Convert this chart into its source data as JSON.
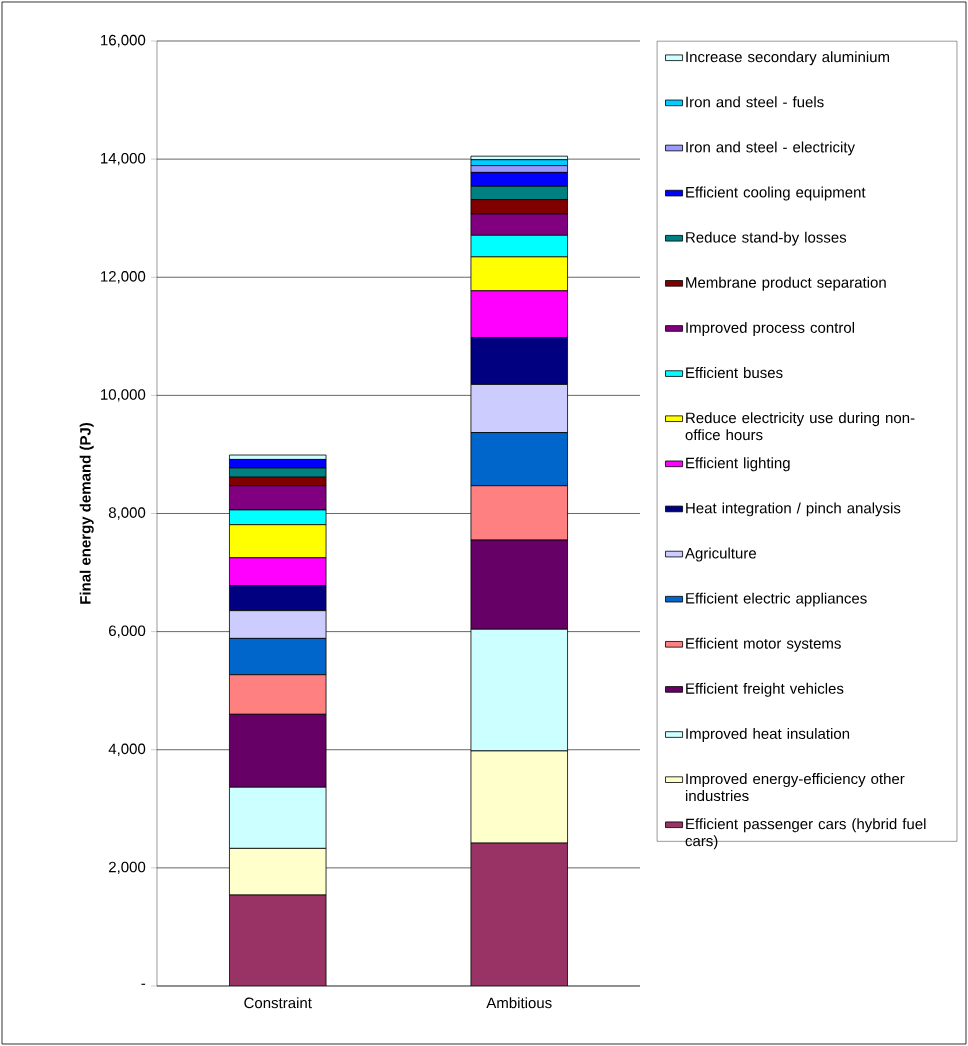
{
  "chart_data": {
    "type": "bar",
    "stacked": true,
    "ylabel": "Final energy demand (PJ)",
    "categories": [
      "Constraint",
      "Ambitious"
    ],
    "ylim": [
      0,
      16000
    ],
    "yticks": [
      {
        "value": 0,
        "label": "-"
      },
      {
        "value": 2000,
        "label": "2,000"
      },
      {
        "value": 4000,
        "label": "4,000"
      },
      {
        "value": 6000,
        "label": "6,000"
      },
      {
        "value": 8000,
        "label": "8,000"
      },
      {
        "value": 10000,
        "label": "10,000"
      },
      {
        "value": 12000,
        "label": "12,000"
      },
      {
        "value": 14000,
        "label": "14,000"
      },
      {
        "value": 16000,
        "label": "16,000"
      }
    ],
    "grid": "y",
    "legend": "right",
    "series": [
      {
        "name": "Efficient passenger cars (hybrid fuel cars)",
        "color": "#993366",
        "values": [
          1540,
          2420
        ]
      },
      {
        "name": "Improved energy-efficiency other industries",
        "color": "#ffffcc",
        "values": [
          790,
          1560
        ]
      },
      {
        "name": "Improved heat insulation",
        "color": "#ccffff",
        "values": [
          1035,
          2060
        ]
      },
      {
        "name": "Efficient freight vehicles",
        "color": "#660066",
        "values": [
          1235,
          1510
        ]
      },
      {
        "name": "Efficient motor systems",
        "color": "#ff8080",
        "values": [
          670,
          920
        ]
      },
      {
        "name": "Efficient electric appliances",
        "color": "#0066cc",
        "values": [
          615,
          900
        ]
      },
      {
        "name": "Agriculture",
        "color": "#ccccff",
        "values": [
          470,
          815
        ]
      },
      {
        "name": "Heat integration / pinch analysis",
        "color": "#000080",
        "values": [
          425,
          795
        ]
      },
      {
        "name": "Efficient lighting",
        "color": "#ff00ff",
        "values": [
          470,
          790
        ]
      },
      {
        "name": "Reduce electricity use during non-office hours",
        "color": "#ffff00",
        "values": [
          560,
          575
        ]
      },
      {
        "name": "Efficient buses",
        "color": "#00ffff",
        "values": [
          250,
          365
        ]
      },
      {
        "name": "Improved process control",
        "color": "#800080",
        "values": [
          410,
          360
        ]
      },
      {
        "name": "Membrane product separation",
        "color": "#800000",
        "values": [
          145,
          245
        ]
      },
      {
        "name": "Reduce stand-by losses",
        "color": "#008080",
        "values": [
          155,
          225
        ]
      },
      {
        "name": "Efficient cooling equipment",
        "color": "#0000ff",
        "values": [
          145,
          235
        ]
      },
      {
        "name": "Iron and steel - electricity",
        "color": "#9999ff",
        "values": [
          0,
          115
        ]
      },
      {
        "name": "Iron and steel - fuels",
        "color": "#00ccff",
        "values": [
          0,
          100
        ]
      },
      {
        "name": "Increase secondary aluminium",
        "color": "#ccffff",
        "values": [
          75,
          60
        ]
      }
    ]
  }
}
